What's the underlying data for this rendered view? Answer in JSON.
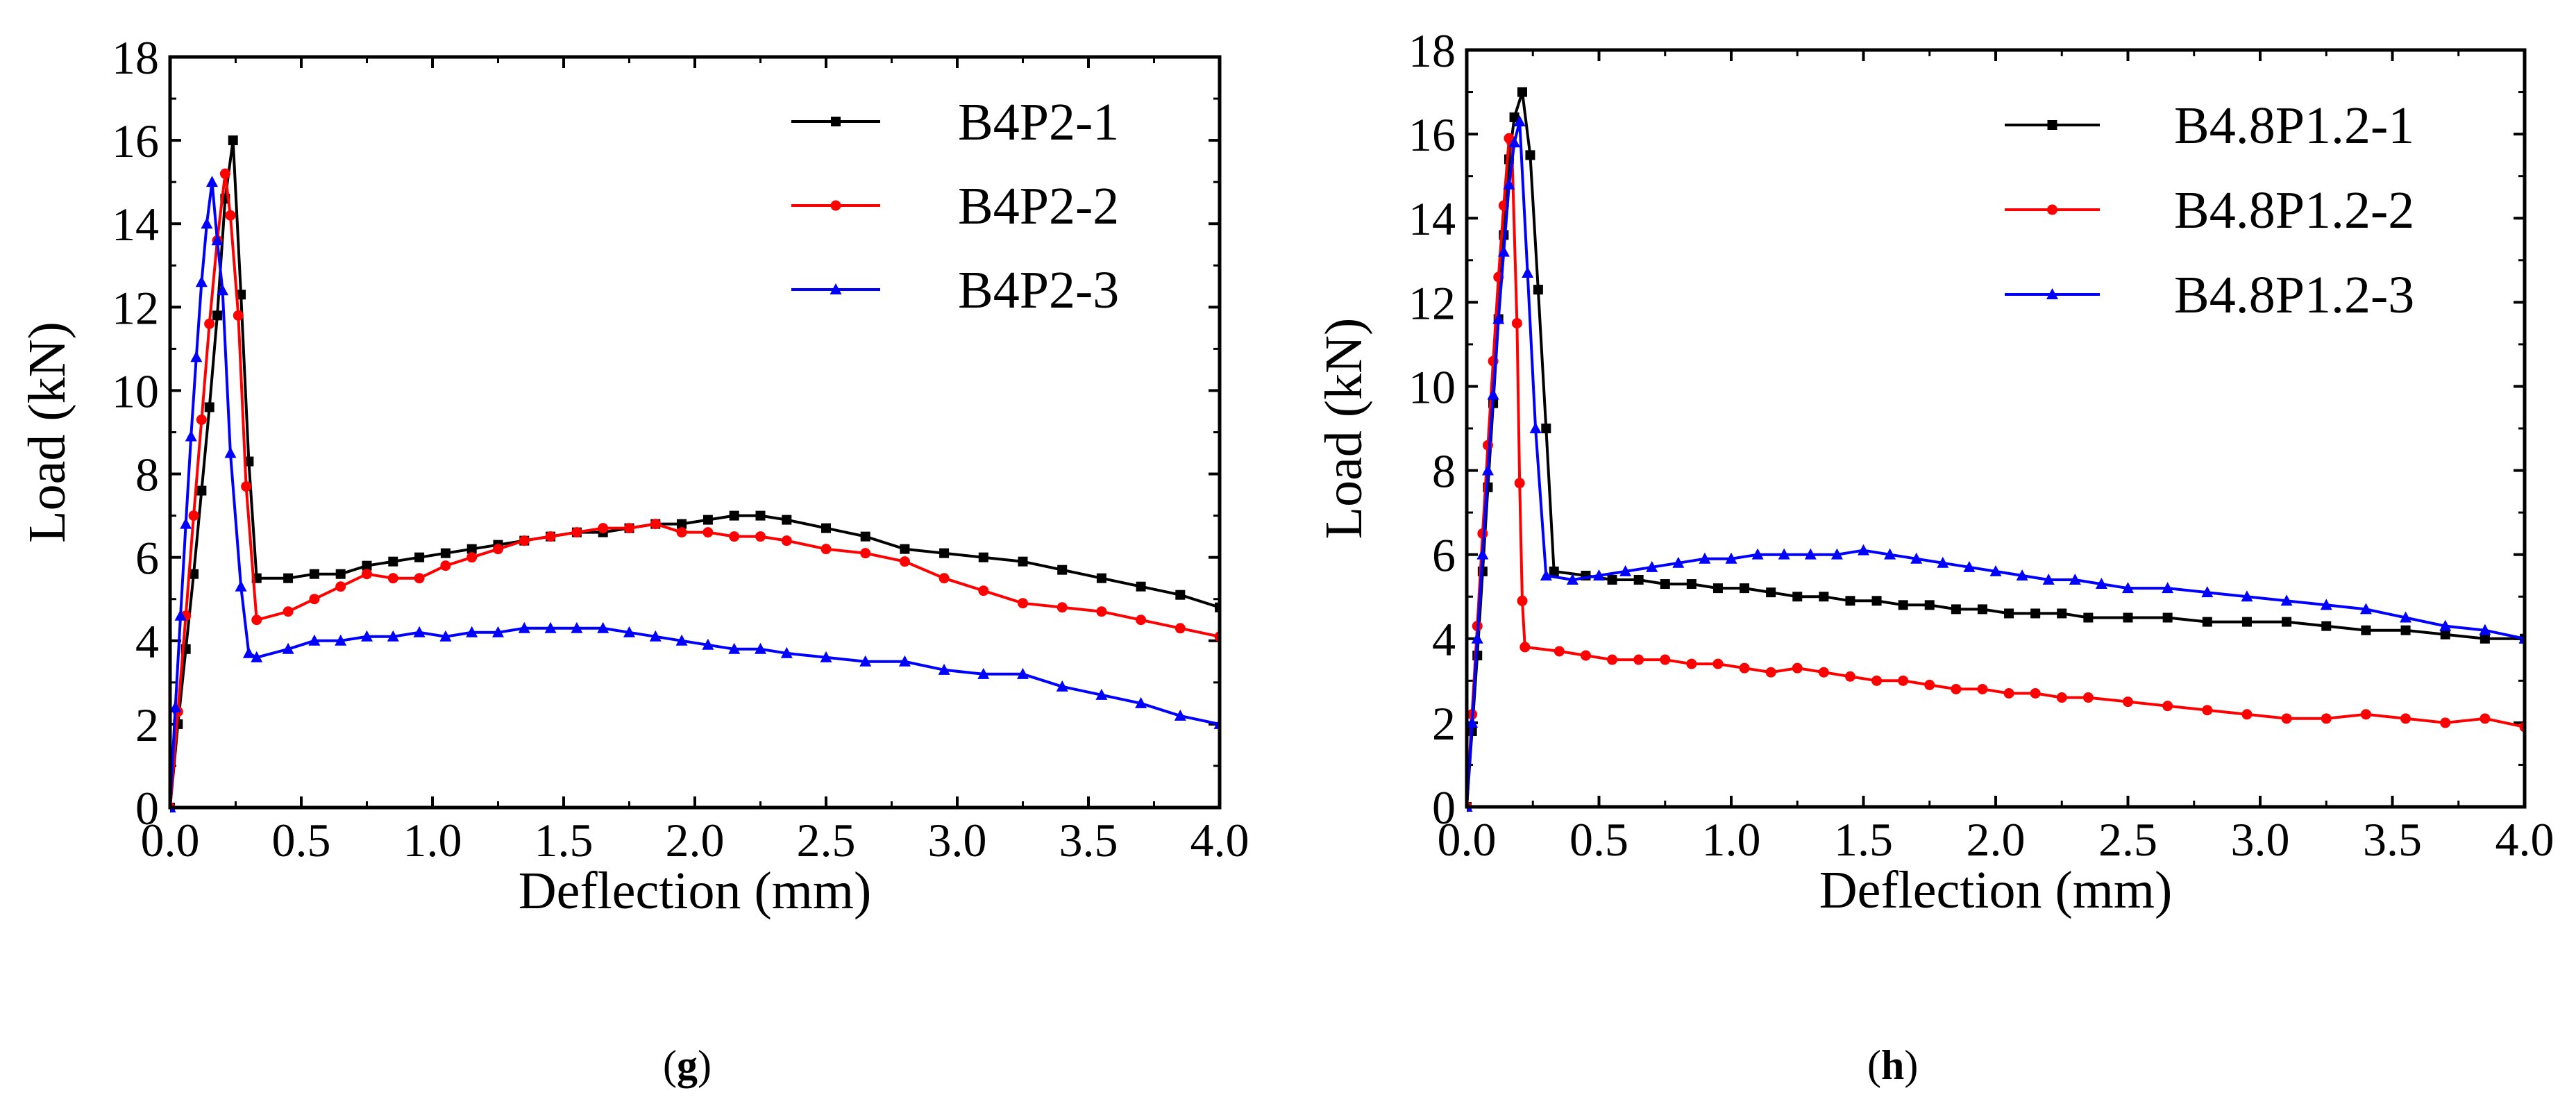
{
  "chart_data": [
    {
      "type": "line",
      "panel_label": "g",
      "title": "",
      "xlabel": "Deflection  (mm)",
      "ylabel": "Load (kN)",
      "xlim": [
        0,
        4.0
      ],
      "ylim": [
        0,
        18
      ],
      "xticks": [
        "0.0",
        "0.5",
        "1.0",
        "1.5",
        "2.0",
        "2.5",
        "3.0",
        "3.5",
        "4.0"
      ],
      "yticks": [
        "0",
        "2",
        "4",
        "6",
        "8",
        "10",
        "12",
        "14",
        "16",
        "18"
      ],
      "legend_position": "top-right",
      "series": [
        {
          "name": "B4P2-1",
          "color": "#000000",
          "marker": "square",
          "x": [
            0,
            0.03,
            0.06,
            0.09,
            0.12,
            0.15,
            0.18,
            0.21,
            0.24,
            0.27,
            0.3,
            0.33,
            0.45,
            0.55,
            0.65,
            0.75,
            0.85,
            0.95,
            1.05,
            1.15,
            1.25,
            1.35,
            1.45,
            1.55,
            1.65,
            1.75,
            1.85,
            1.95,
            2.05,
            2.15,
            2.25,
            2.35,
            2.5,
            2.65,
            2.8,
            2.95,
            3.1,
            3.25,
            3.4,
            3.55,
            3.7,
            3.85,
            4.0
          ],
          "y": [
            0,
            2.0,
            3.8,
            5.6,
            7.6,
            9.6,
            11.8,
            14.6,
            16.0,
            12.3,
            8.3,
            5.5,
            5.5,
            5.6,
            5.6,
            5.8,
            5.9,
            6.0,
            6.1,
            6.2,
            6.3,
            6.4,
            6.5,
            6.6,
            6.6,
            6.7,
            6.8,
            6.8,
            6.9,
            7.0,
            7.0,
            6.9,
            6.7,
            6.5,
            6.2,
            6.1,
            6.0,
            5.9,
            5.7,
            5.5,
            5.3,
            5.1,
            4.8
          ]
        },
        {
          "name": "B4P2-2",
          "color": "#ff0000",
          "marker": "circle",
          "x": [
            0,
            0.03,
            0.06,
            0.09,
            0.12,
            0.15,
            0.18,
            0.21,
            0.23,
            0.26,
            0.29,
            0.33,
            0.45,
            0.55,
            0.65,
            0.75,
            0.85,
            0.95,
            1.05,
            1.15,
            1.25,
            1.35,
            1.45,
            1.55,
            1.65,
            1.75,
            1.85,
            1.95,
            2.05,
            2.15,
            2.25,
            2.35,
            2.5,
            2.65,
            2.8,
            2.95,
            3.1,
            3.25,
            3.4,
            3.55,
            3.7,
            3.85,
            4.0
          ],
          "y": [
            0,
            2.3,
            4.6,
            7.0,
            9.3,
            11.6,
            13.6,
            15.2,
            14.2,
            11.8,
            7.7,
            4.5,
            4.7,
            5.0,
            5.3,
            5.6,
            5.5,
            5.5,
            5.8,
            6.0,
            6.2,
            6.4,
            6.5,
            6.6,
            6.7,
            6.7,
            6.8,
            6.6,
            6.6,
            6.5,
            6.5,
            6.4,
            6.2,
            6.1,
            5.9,
            5.5,
            5.2,
            4.9,
            4.8,
            4.7,
            4.5,
            4.3,
            4.1
          ]
        },
        {
          "name": "B4P2-3",
          "color": "#0000ff",
          "marker": "triangle",
          "x": [
            0,
            0.02,
            0.04,
            0.06,
            0.08,
            0.1,
            0.12,
            0.14,
            0.16,
            0.18,
            0.2,
            0.23,
            0.27,
            0.3,
            0.33,
            0.45,
            0.55,
            0.65,
            0.75,
            0.85,
            0.95,
            1.05,
            1.15,
            1.25,
            1.35,
            1.45,
            1.55,
            1.65,
            1.75,
            1.85,
            1.95,
            2.05,
            2.15,
            2.25,
            2.35,
            2.5,
            2.65,
            2.8,
            2.95,
            3.1,
            3.25,
            3.4,
            3.55,
            3.7,
            3.85,
            4.0
          ],
          "y": [
            0,
            2.4,
            4.6,
            6.8,
            8.9,
            10.8,
            12.6,
            14.0,
            15.0,
            13.6,
            12.4,
            8.5,
            5.3,
            3.7,
            3.6,
            3.8,
            4.0,
            4.0,
            4.1,
            4.1,
            4.2,
            4.1,
            4.2,
            4.2,
            4.3,
            4.3,
            4.3,
            4.3,
            4.2,
            4.1,
            4.0,
            3.9,
            3.8,
            3.8,
            3.7,
            3.6,
            3.5,
            3.5,
            3.3,
            3.2,
            3.2,
            2.9,
            2.7,
            2.5,
            2.2,
            2.0
          ]
        }
      ]
    },
    {
      "type": "line",
      "panel_label": "h",
      "title": "",
      "xlabel": "Deflection  (mm)",
      "ylabel": "Load (kN)",
      "xlim": [
        0,
        4.0
      ],
      "ylim": [
        0,
        18
      ],
      "xticks": [
        "0.0",
        "0.5",
        "1.0",
        "1.5",
        "2.0",
        "2.5",
        "3.0",
        "3.5",
        "4.0"
      ],
      "yticks": [
        "0",
        "2",
        "4",
        "6",
        "8",
        "10",
        "12",
        "14",
        "16",
        "18"
      ],
      "legend_position": "top-right",
      "series": [
        {
          "name": "B4.8P1.2-1",
          "color": "#000000",
          "marker": "square",
          "x": [
            0,
            0.02,
            0.04,
            0.06,
            0.08,
            0.1,
            0.12,
            0.14,
            0.16,
            0.18,
            0.21,
            0.24,
            0.27,
            0.3,
            0.33,
            0.45,
            0.55,
            0.65,
            0.75,
            0.85,
            0.95,
            1.05,
            1.15,
            1.25,
            1.35,
            1.45,
            1.55,
            1.65,
            1.75,
            1.85,
            1.95,
            2.05,
            2.15,
            2.25,
            2.35,
            2.5,
            2.65,
            2.8,
            2.95,
            3.1,
            3.25,
            3.4,
            3.55,
            3.7,
            3.85,
            4.0
          ],
          "y": [
            0,
            1.8,
            3.6,
            5.6,
            7.6,
            9.6,
            11.6,
            13.6,
            15.4,
            16.4,
            17.0,
            15.5,
            12.3,
            9.0,
            5.6,
            5.5,
            5.4,
            5.4,
            5.3,
            5.3,
            5.2,
            5.2,
            5.1,
            5.0,
            5.0,
            4.9,
            4.9,
            4.8,
            4.8,
            4.7,
            4.7,
            4.6,
            4.6,
            4.6,
            4.5,
            4.5,
            4.5,
            4.4,
            4.4,
            4.4,
            4.3,
            4.2,
            4.2,
            4.1,
            4.0,
            4.0
          ]
        },
        {
          "name": "B4.8P1.2-2",
          "color": "#ff0000",
          "marker": "circle",
          "x": [
            0,
            0.02,
            0.04,
            0.06,
            0.08,
            0.1,
            0.12,
            0.14,
            0.16,
            0.17,
            0.19,
            0.2,
            0.21,
            0.22,
            0.35,
            0.45,
            0.55,
            0.65,
            0.75,
            0.85,
            0.95,
            1.05,
            1.15,
            1.25,
            1.35,
            1.45,
            1.55,
            1.65,
            1.75,
            1.85,
            1.95,
            2.05,
            2.15,
            2.25,
            2.35,
            2.5,
            2.65,
            2.8,
            2.95,
            3.1,
            3.25,
            3.4,
            3.55,
            3.7,
            3.85,
            4.0
          ],
          "y": [
            0,
            2.2,
            4.3,
            6.5,
            8.6,
            10.6,
            12.6,
            14.3,
            15.9,
            15.8,
            11.5,
            7.7,
            4.9,
            3.8,
            3.7,
            3.6,
            3.5,
            3.5,
            3.5,
            3.4,
            3.4,
            3.3,
            3.2,
            3.3,
            3.2,
            3.1,
            3.0,
            3.0,
            2.9,
            2.8,
            2.8,
            2.7,
            2.7,
            2.6,
            2.6,
            2.5,
            2.4,
            2.3,
            2.2,
            2.1,
            2.1,
            2.2,
            2.1,
            2.0,
            2.1,
            1.9
          ]
        },
        {
          "name": "B4.8P1.2-3",
          "color": "#0000ff",
          "marker": "triangle",
          "x": [
            0,
            0.02,
            0.04,
            0.06,
            0.08,
            0.1,
            0.12,
            0.14,
            0.16,
            0.18,
            0.2,
            0.23,
            0.26,
            0.3,
            0.4,
            0.5,
            0.6,
            0.7,
            0.8,
            0.9,
            1.0,
            1.1,
            1.2,
            1.3,
            1.4,
            1.5,
            1.6,
            1.7,
            1.8,
            1.9,
            2.0,
            2.1,
            2.2,
            2.3,
            2.4,
            2.5,
            2.65,
            2.8,
            2.95,
            3.1,
            3.25,
            3.4,
            3.55,
            3.7,
            3.85,
            4.0
          ],
          "y": [
            0,
            2.0,
            4.0,
            6.0,
            8.0,
            9.8,
            11.6,
            13.2,
            14.8,
            15.8,
            16.3,
            12.7,
            9.0,
            5.5,
            5.4,
            5.5,
            5.6,
            5.7,
            5.8,
            5.9,
            5.9,
            6.0,
            6.0,
            6.0,
            6.0,
            6.1,
            6.0,
            5.9,
            5.8,
            5.7,
            5.6,
            5.5,
            5.4,
            5.4,
            5.3,
            5.2,
            5.2,
            5.1,
            5.0,
            4.9,
            4.8,
            4.7,
            4.5,
            4.3,
            4.2,
            4.0
          ]
        }
      ]
    }
  ]
}
